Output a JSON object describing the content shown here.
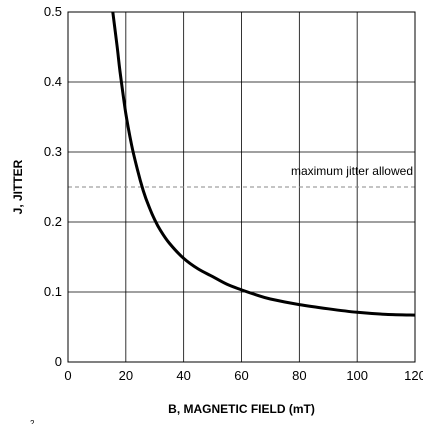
{
  "chart_data": {
    "type": "line",
    "title": "",
    "xlabel": "B, MAGNETIC FIELD (mT)",
    "ylabel": "J, JITTER",
    "xlim": [
      0,
      120
    ],
    "ylim": [
      0,
      0.5
    ],
    "x_ticks": [
      0,
      20,
      40,
      60,
      80,
      100,
      120
    ],
    "x_tick_labels": [
      "0",
      "20",
      "40",
      "60",
      "80",
      "100",
      "120"
    ],
    "y_ticks": [
      0,
      0.1,
      0.2,
      0.3,
      0.4,
      0.5
    ],
    "y_tick_labels": [
      "0",
      "0.1",
      "0.2",
      "0.3",
      "0.4",
      "0.5"
    ],
    "grid": true,
    "series": [
      {
        "x": [
          15.5,
          17,
          18,
          20,
          22,
          24,
          26,
          28,
          30,
          32,
          35,
          40,
          45,
          50,
          55,
          60,
          65,
          70,
          80,
          90,
          100,
          110,
          120
        ],
        "y": [
          0.5,
          0.45,
          0.415,
          0.355,
          0.31,
          0.275,
          0.245,
          0.222,
          0.203,
          0.188,
          0.17,
          0.148,
          0.133,
          0.122,
          0.111,
          0.103,
          0.096,
          0.09,
          0.082,
          0.076,
          0.071,
          0.068,
          0.067
        ],
        "color": "#000000"
      }
    ],
    "reference_lines": [
      {
        "y": 0.25,
        "label": "maximum jitter allowed",
        "style": "dashed",
        "color": "#888888"
      }
    ],
    "stray_mark": "2"
  }
}
